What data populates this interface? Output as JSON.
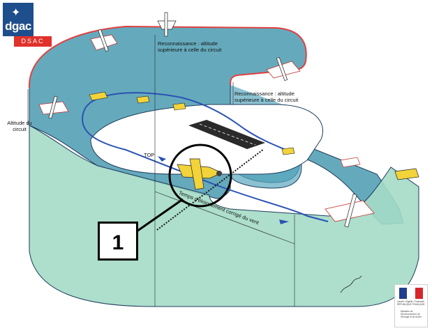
{
  "logo": {
    "main": "dgac",
    "sub": "DSAC"
  },
  "labels": {
    "recon1": "Reconnaissance : altitude supérieure à celle du circuit",
    "recon2": "Reconnaissance : altitude supérieure à celle du circuit",
    "altitude": "Altitude du circuit",
    "top": "TOP",
    "temps": "Temps d'éloignement corrigé du vent",
    "callout": "1"
  },
  "seal": {
    "motto": "Liberté • Égalité • Fraternité RÉPUBLIQUE FRANÇAISE",
    "ministry": "Ministère de l'Environnement, de l'Énergie et de la Mer"
  },
  "colors": {
    "teal": "#4a9bb0",
    "mint": "#a4dcc6",
    "red_edge": "#e04040",
    "blue_path": "#2a52b4",
    "logo_blue": "#1f4e8c",
    "logo_red": "#e0312b",
    "aircraft_yellow": "#f2d33a"
  }
}
